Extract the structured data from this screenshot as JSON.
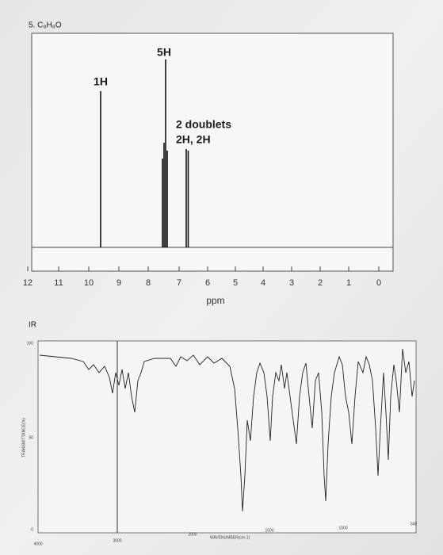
{
  "header": {
    "title": "5. C₈H₈O"
  },
  "nmr": {
    "x_ticks": [
      "12",
      "11",
      "10",
      "9",
      "8",
      "7",
      "6",
      "5",
      "4",
      "3",
      "2",
      "1",
      "0"
    ],
    "x_label": "ppm",
    "peak_labels": [
      "1H",
      "5H",
      "2 doublets",
      "2H, 2H"
    ]
  },
  "ir": {
    "label": "IR",
    "y_ticks": [
      "100",
      "50",
      "0"
    ],
    "y_label": "TRANSMITTANCE(%)",
    "x_ticks": [
      "4000",
      "3000",
      "2000",
      "1500",
      "1000",
      "500"
    ],
    "x_label": "WAVENUMBER(cm-1)"
  }
}
